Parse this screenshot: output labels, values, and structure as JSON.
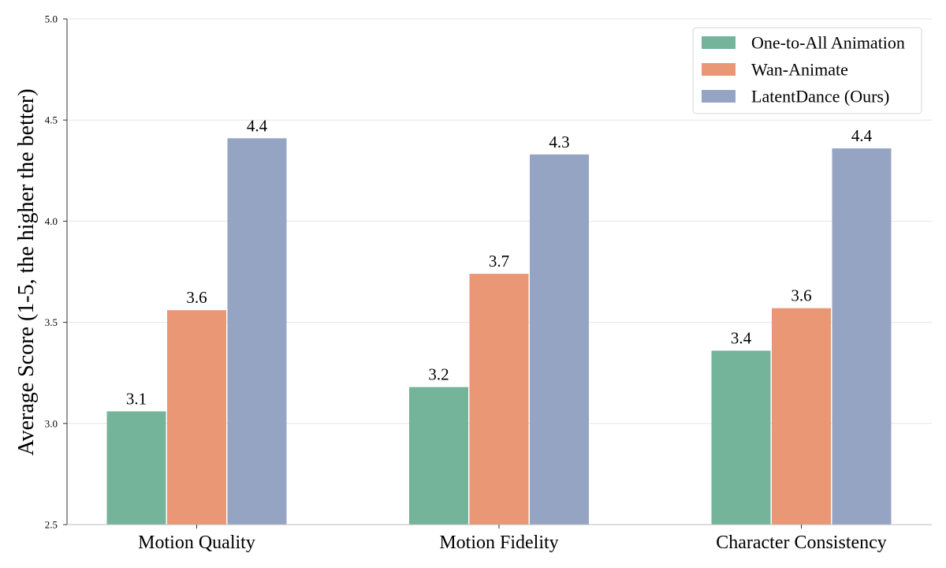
{
  "chart_data": {
    "type": "bar",
    "categories": [
      "Motion Quality",
      "Motion Fidelity",
      "Character Consistency"
    ],
    "series": [
      {
        "name": "One-to-All Animation",
        "values": [
          3.06,
          3.18,
          3.36
        ],
        "labels": [
          "3.1",
          "3.2",
          "3.4"
        ],
        "color": "#74b49b"
      },
      {
        "name": "Wan-Animate",
        "values": [
          3.56,
          3.74,
          3.57
        ],
        "labels": [
          "3.6",
          "3.7",
          "3.6"
        ],
        "color": "#e99775"
      },
      {
        "name": "LatentDance (Ours)",
        "values": [
          4.41,
          4.33,
          4.36
        ],
        "labels": [
          "4.4",
          "4.3",
          "4.4"
        ],
        "color": "#95a4c3"
      }
    ],
    "ylabel": "Average Score (1-5, the higher the better)",
    "ylim": [
      2.5,
      5.0
    ],
    "yticks": [
      "2.5",
      "3.0",
      "3.5",
      "4.0",
      "4.5",
      "5.0"
    ],
    "grid": "horizontal",
    "legend_position": "top-right"
  }
}
